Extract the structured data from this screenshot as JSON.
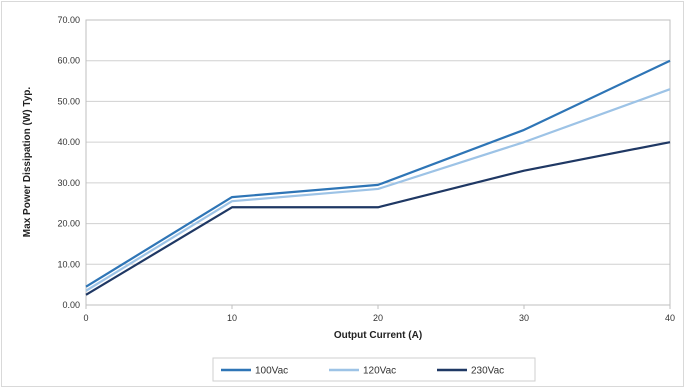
{
  "chart_data": {
    "type": "line",
    "xlabel": "Output Current (A)",
    "ylabel": "Max Power Dissipation (W) Typ.",
    "xlim": [
      0,
      40
    ],
    "ylim": [
      0,
      70
    ],
    "x_ticks": [
      "0",
      "10",
      "20",
      "30",
      "40"
    ],
    "y_ticks": [
      "0.00",
      "10.00",
      "20.00",
      "30.00",
      "40.00",
      "50.00",
      "60.00",
      "70.00"
    ],
    "grid": "horizontal",
    "legend_position": "bottom",
    "x": [
      0,
      10,
      20,
      30,
      40
    ],
    "series": [
      {
        "name": "100Vac",
        "color": "#2e75b6",
        "values": [
          4.5,
          26.5,
          29.5,
          43,
          60
        ]
      },
      {
        "name": "120Vac",
        "color": "#9dc3e6",
        "values": [
          3.5,
          25.5,
          28.5,
          40,
          53
        ]
      },
      {
        "name": "230Vac",
        "color": "#1f3864",
        "values": [
          2.5,
          24,
          24,
          33,
          40
        ]
      }
    ]
  }
}
